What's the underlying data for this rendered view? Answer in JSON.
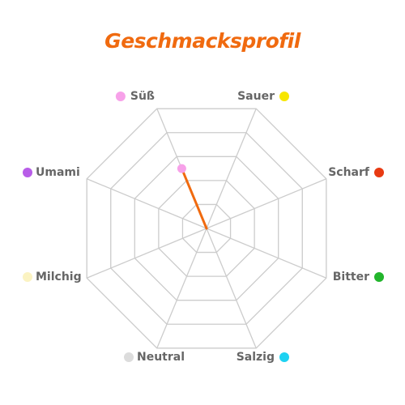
{
  "title": "Geschmacksprofil",
  "colors": {
    "title": "#f06a0f",
    "grid": "#cccccc",
    "line": "#f06a0f"
  },
  "chart_data": {
    "type": "radar",
    "title": "Geschmacksprofil",
    "rlim": [
      0,
      5
    ],
    "grid_levels": 5,
    "categories": [
      {
        "label": "Süß",
        "color": "#f7a1e9"
      },
      {
        "label": "Sauer",
        "color": "#f7e600"
      },
      {
        "label": "Scharf",
        "color": "#e83a12"
      },
      {
        "label": "Bitter",
        "color": "#22b52c"
      },
      {
        "label": "Salzig",
        "color": "#1ed2f2"
      },
      {
        "label": "Neutral",
        "color": "#dcdcdc"
      },
      {
        "label": "Milchig",
        "color": "#fbf3c2"
      },
      {
        "label": "Umami",
        "color": "#b85de8"
      }
    ],
    "series": [
      {
        "values": [
          2.5,
          0,
          0,
          0,
          0,
          0,
          0,
          0
        ]
      }
    ]
  }
}
